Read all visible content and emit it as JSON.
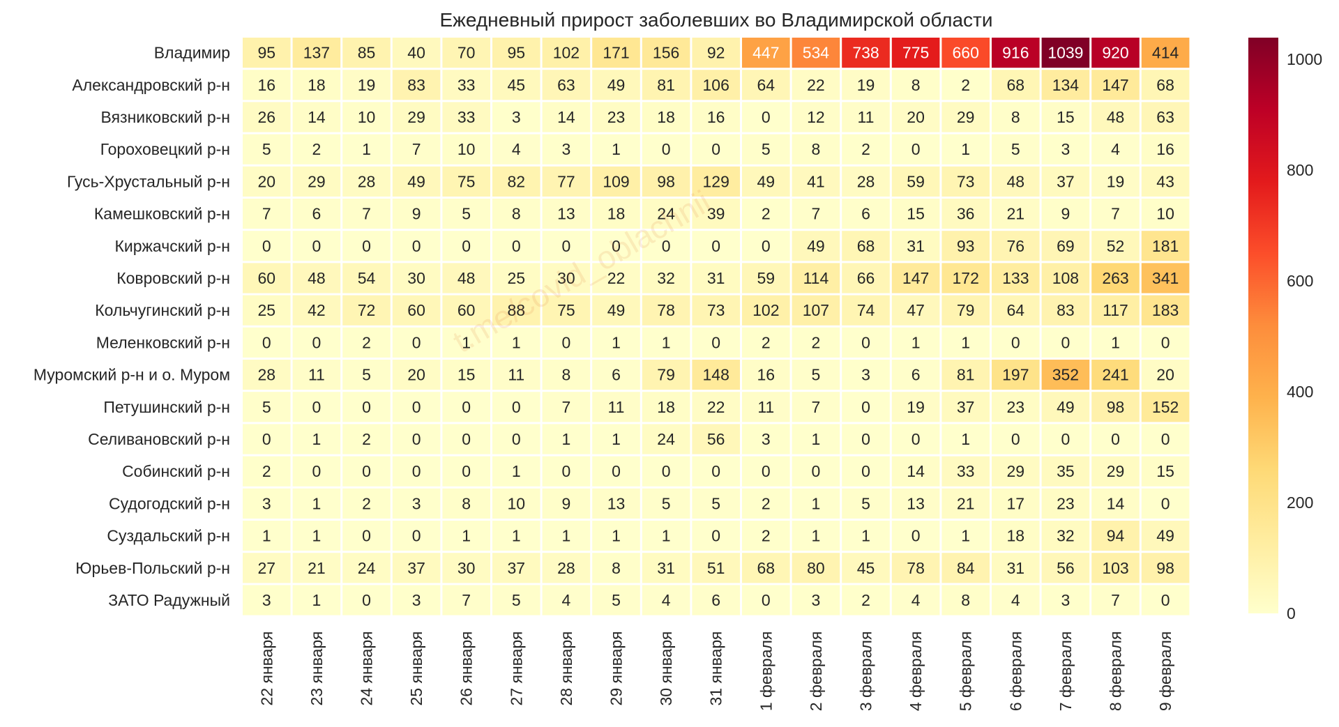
{
  "chart_data": {
    "type": "heatmap",
    "title": "Ежедневный прирост заболевших во Владимирской области",
    "watermark": "t.me/covid_oblachnii",
    "rows": [
      "Владимир",
      "Александровский р-н",
      "Вязниковский р-н",
      "Гороховецкий р-н",
      "Гусь-Хрустальный р-н",
      "Камешковский р-н",
      "Киржачский р-н",
      "Ковровский р-н",
      "Кольчугинский р-н",
      "Меленковский р-н",
      "Муромский р-н и о. Муром",
      "Петушинский р-н",
      "Селивановский р-н",
      "Собинский р-н",
      "Судогодский р-н",
      "Суздальский р-н",
      "Юрьев-Польский р-н",
      "ЗАТО Радужный"
    ],
    "columns": [
      "22 января",
      "23 января",
      "24 января",
      "25 января",
      "26 января",
      "27 января",
      "28 января",
      "29 января",
      "30 января",
      "31 января",
      "1 февраля",
      "2 февраля",
      "3 февраля",
      "4 февраля",
      "5 февраля",
      "6 февраля",
      "7 февраля",
      "8 февраля",
      "9 февраля"
    ],
    "values": [
      [
        95,
        137,
        85,
        40,
        70,
        95,
        102,
        171,
        156,
        92,
        447,
        534,
        738,
        775,
        660,
        916,
        1039,
        920,
        414
      ],
      [
        16,
        18,
        19,
        83,
        33,
        45,
        63,
        49,
        81,
        106,
        64,
        22,
        19,
        8,
        2,
        68,
        134,
        147,
        68
      ],
      [
        26,
        14,
        10,
        29,
        33,
        3,
        14,
        23,
        18,
        16,
        0,
        12,
        11,
        20,
        29,
        8,
        15,
        48,
        63
      ],
      [
        5,
        2,
        1,
        7,
        10,
        4,
        3,
        1,
        0,
        0,
        5,
        8,
        2,
        0,
        1,
        5,
        3,
        4,
        16
      ],
      [
        20,
        29,
        28,
        49,
        75,
        82,
        77,
        109,
        98,
        129,
        49,
        41,
        28,
        59,
        73,
        48,
        37,
        19,
        43
      ],
      [
        7,
        6,
        7,
        9,
        5,
        8,
        13,
        18,
        24,
        39,
        2,
        7,
        6,
        15,
        36,
        21,
        9,
        7,
        10
      ],
      [
        0,
        0,
        0,
        0,
        0,
        0,
        0,
        0,
        0,
        0,
        0,
        49,
        68,
        31,
        93,
        76,
        69,
        52,
        181
      ],
      [
        60,
        48,
        54,
        30,
        48,
        25,
        30,
        22,
        32,
        31,
        59,
        114,
        66,
        147,
        172,
        133,
        108,
        263,
        341
      ],
      [
        25,
        42,
        72,
        60,
        60,
        88,
        75,
        49,
        78,
        73,
        102,
        107,
        74,
        47,
        79,
        64,
        83,
        117,
        183
      ],
      [
        0,
        0,
        2,
        0,
        1,
        1,
        0,
        1,
        1,
        0,
        2,
        2,
        0,
        1,
        1,
        0,
        0,
        1,
        0
      ],
      [
        28,
        11,
        5,
        20,
        15,
        11,
        8,
        6,
        79,
        148,
        16,
        5,
        3,
        6,
        81,
        197,
        352,
        241,
        20
      ],
      [
        5,
        0,
        0,
        0,
        0,
        0,
        7,
        11,
        18,
        22,
        11,
        7,
        0,
        19,
        37,
        23,
        49,
        98,
        152
      ],
      [
        0,
        1,
        2,
        0,
        0,
        0,
        1,
        1,
        24,
        56,
        3,
        1,
        0,
        0,
        1,
        0,
        0,
        0,
        0
      ],
      [
        2,
        0,
        0,
        0,
        0,
        1,
        0,
        0,
        0,
        0,
        0,
        0,
        0,
        14,
        33,
        29,
        35,
        29,
        15
      ],
      [
        3,
        1,
        2,
        3,
        8,
        10,
        9,
        13,
        5,
        5,
        2,
        1,
        5,
        13,
        21,
        17,
        23,
        14,
        0
      ],
      [
        1,
        1,
        0,
        0,
        1,
        1,
        1,
        1,
        1,
        0,
        2,
        1,
        1,
        0,
        1,
        18,
        32,
        94,
        49
      ],
      [
        27,
        21,
        24,
        37,
        30,
        37,
        28,
        8,
        31,
        51,
        68,
        80,
        45,
        78,
        84,
        31,
        56,
        103,
        98
      ],
      [
        3,
        1,
        0,
        3,
        7,
        5,
        4,
        5,
        4,
        6,
        0,
        3,
        2,
        4,
        8,
        4,
        3,
        7,
        0
      ]
    ],
    "vmin": 0,
    "vmax": 1039,
    "colormap": "YlOrRd",
    "colorbar_ticks": [
      0,
      200,
      400,
      600,
      800,
      1000
    ],
    "annotations": true,
    "colors": {
      "low": "#ffffcc",
      "mid": "#fd8d3c",
      "high": "#800026",
      "text_dark": "#262626",
      "text_light": "#ffffff"
    }
  }
}
